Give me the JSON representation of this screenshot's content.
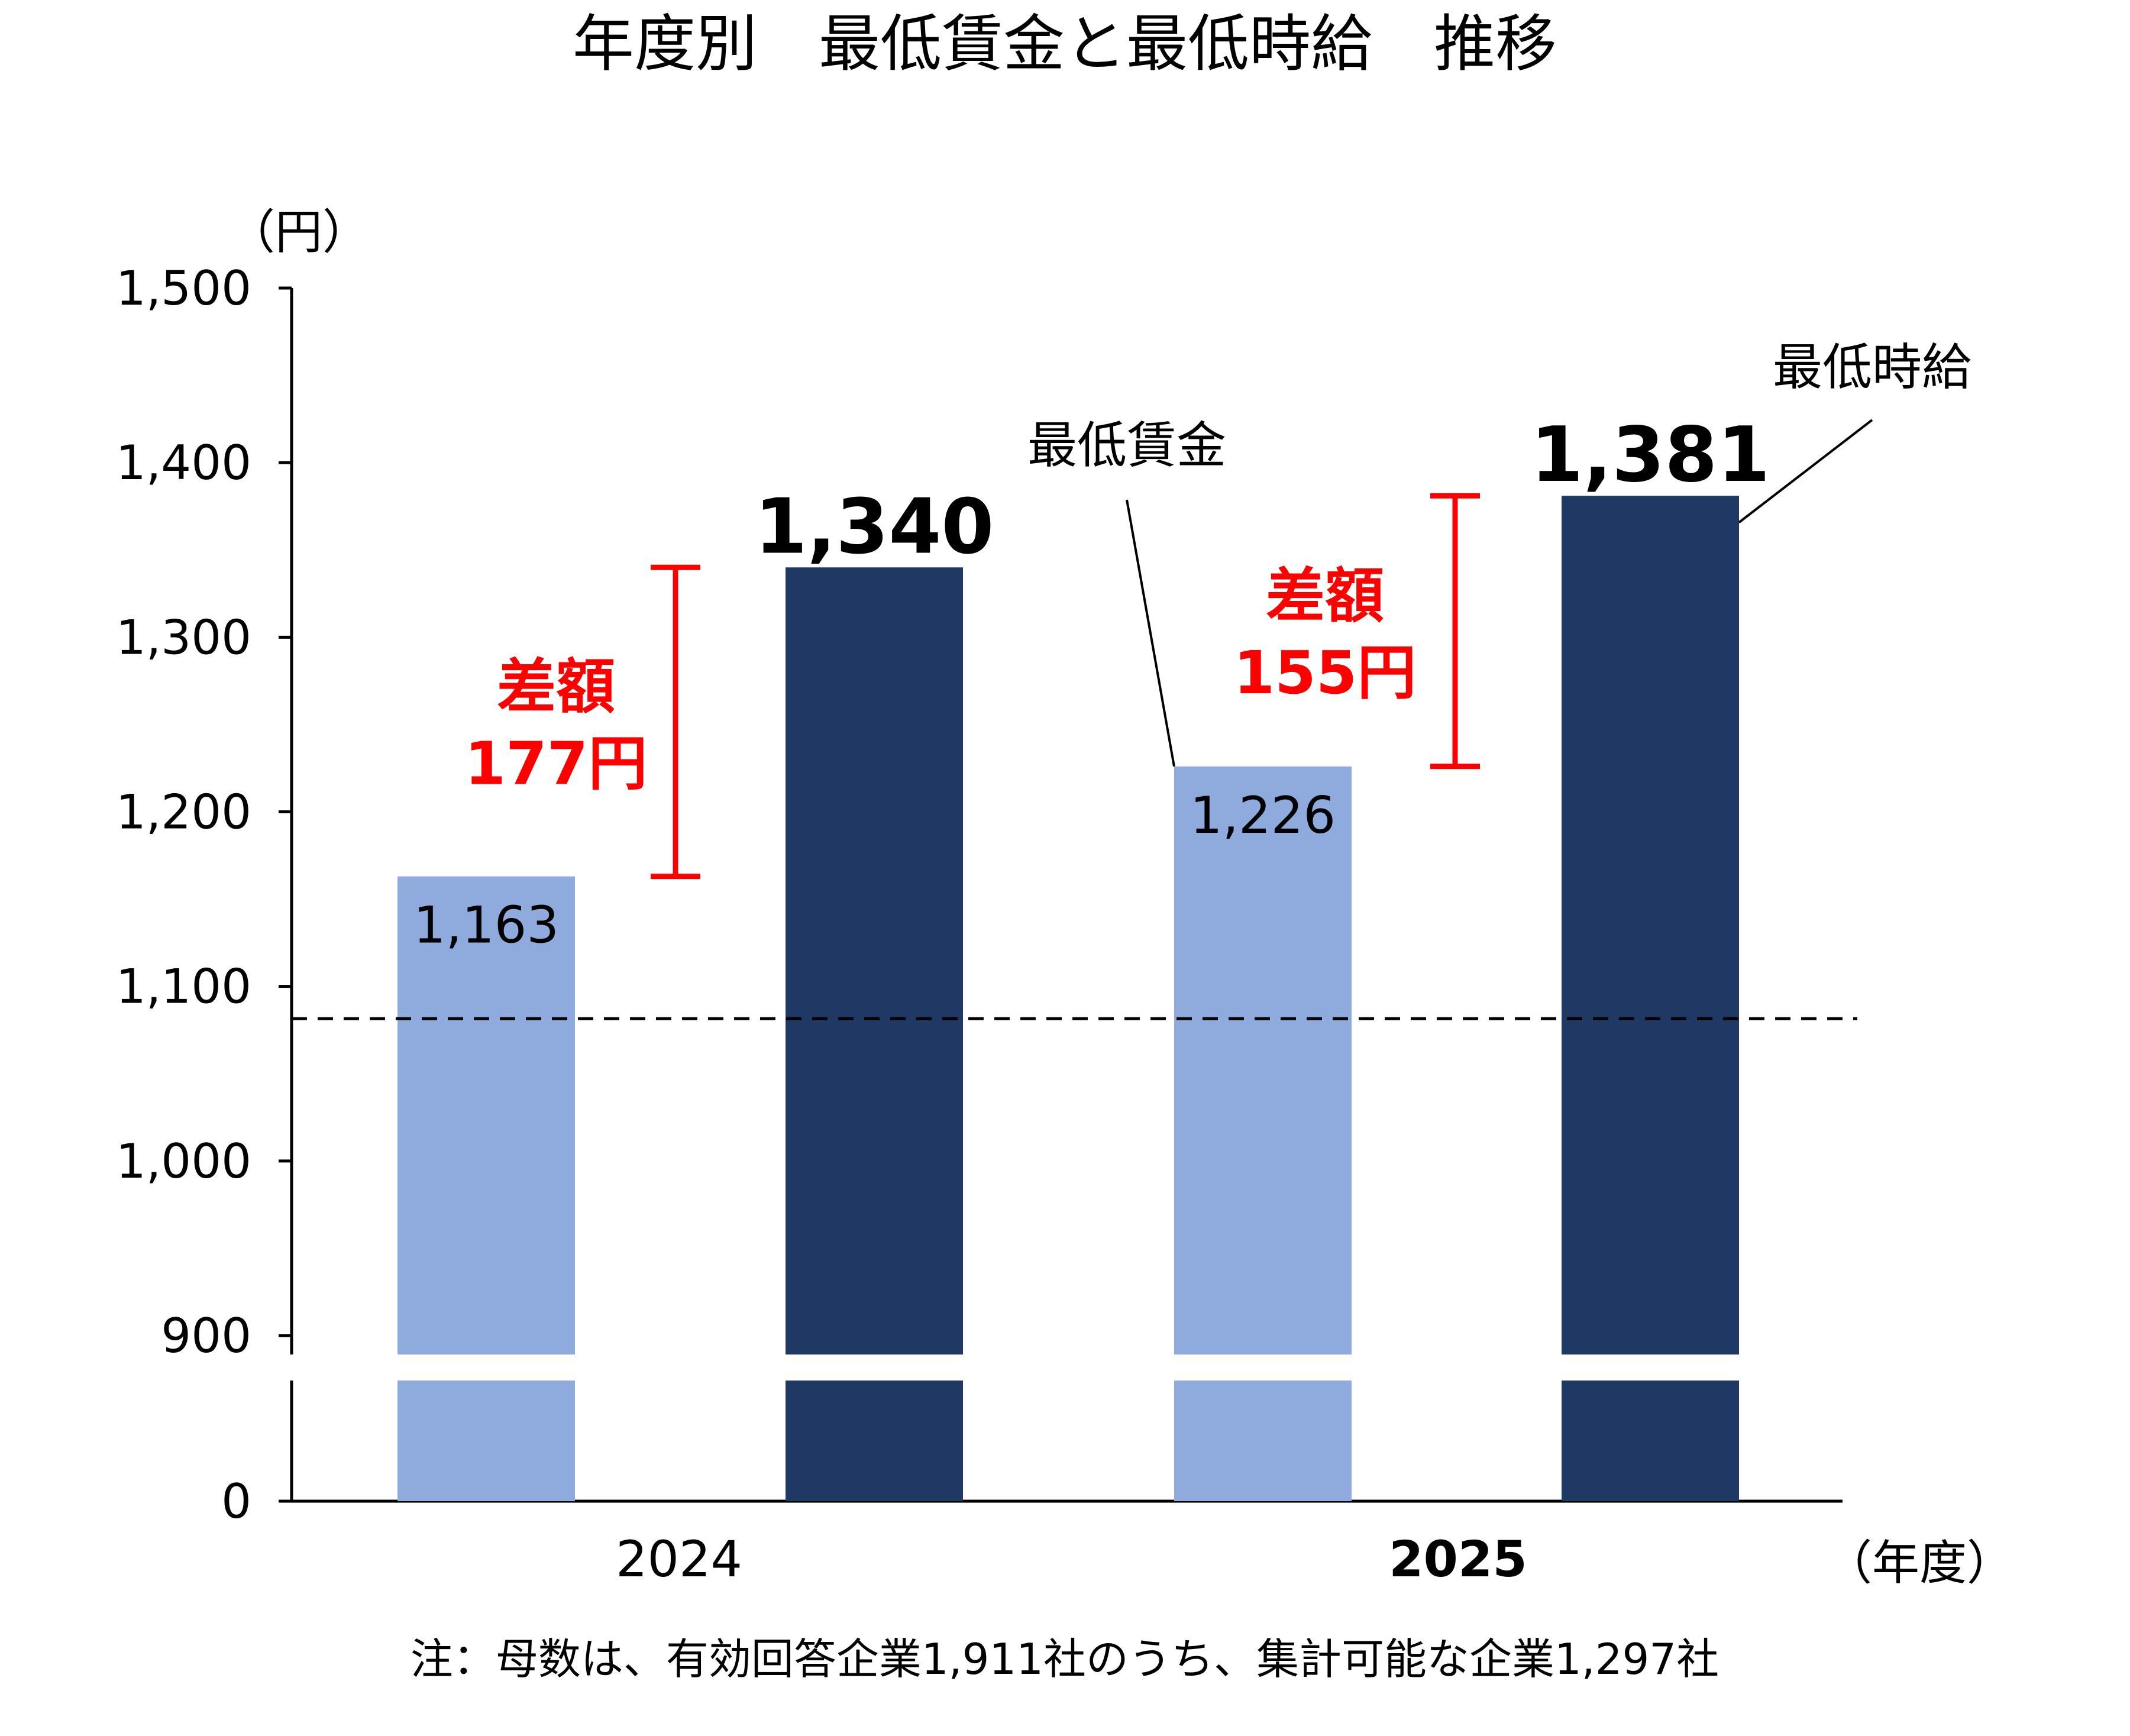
{
  "chart_data": {
    "type": "bar",
    "title": "年度別　最低賃金と最低時給　推移",
    "y_unit": "（円）",
    "x_unit": "（年度）",
    "categories": [
      "2024",
      "2025"
    ],
    "series": [
      {
        "name": "最低賃金",
        "color": "#8FAADC",
        "values": [
          1163,
          1226
        ],
        "value_labels": [
          "1,163",
          "1,226"
        ]
      },
      {
        "name": "最低時給",
        "color": "#203864",
        "values": [
          1340,
          1381
        ],
        "value_labels": [
          "1,340",
          "1,381"
        ]
      }
    ],
    "ylim": [
      900,
      1500
    ],
    "axis_break": true,
    "yticks": [
      1500,
      1400,
      1300,
      1200,
      1100,
      1000,
      900,
      0
    ],
    "ytick_labels": [
      "1,500",
      "1,400",
      "1,300",
      "1,200",
      "1,100",
      "1,000",
      "900",
      "0"
    ],
    "reference_line": {
      "value": 1081.5,
      "style": "dashed",
      "color": "#000000"
    },
    "differences": [
      {
        "category": "2024",
        "label_line1": "差額",
        "label_line2": "177円",
        "from": 1163,
        "to": 1340,
        "color": "#FF0000"
      },
      {
        "category": "2025",
        "label_line1": "差額",
        "label_line2": "155円",
        "from": 1226,
        "to": 1381,
        "color": "#FF0000"
      }
    ],
    "note": "注：母数は、有効回答企業1,911社のうち、集計可能な企業1,297社"
  }
}
